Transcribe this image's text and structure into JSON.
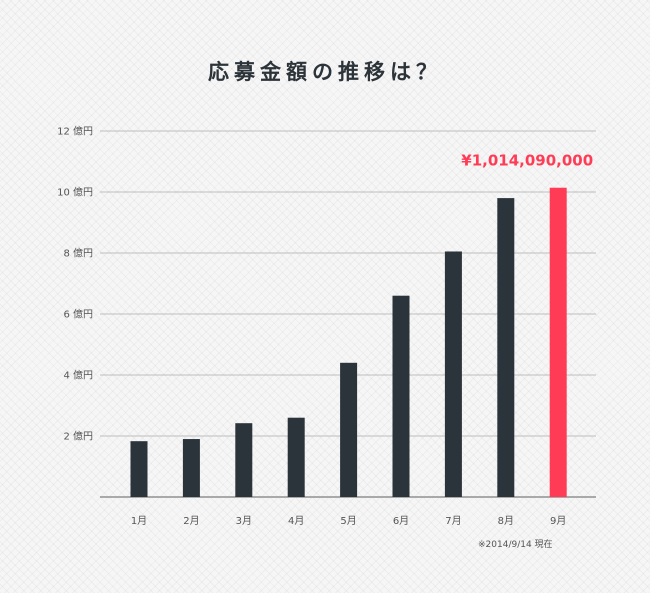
{
  "chart_data": {
    "type": "bar",
    "title": "応募金額の推移は？",
    "categories": [
      "1月",
      "2月",
      "3月",
      "4月",
      "5月",
      "6月",
      "7月",
      "8月",
      "9月"
    ],
    "values": [
      1.83,
      1.9,
      2.42,
      2.6,
      4.4,
      6.6,
      8.05,
      9.8,
      10.14
    ],
    "unit": "億円",
    "ylim": [
      0,
      12
    ],
    "yticks": [
      {
        "value": 2,
        "label": "2 億円"
      },
      {
        "value": 4,
        "label": "4 億円"
      },
      {
        "value": 6,
        "label": "6 億円"
      },
      {
        "value": 8,
        "label": "8 億円"
      },
      {
        "value": 10,
        "label": "10 億円"
      },
      {
        "value": 12,
        "label": "12 億円"
      }
    ],
    "annotation": {
      "category": "9月",
      "text": "¥1,014,090,000"
    },
    "note": "※2014/9/14 現在",
    "grid": true,
    "colors": {
      "bar": "#2b343b",
      "highlight": "#ff3b55",
      "grid": "#bdbdbd",
      "axis": "#a9a9a9"
    },
    "highlight_index": 8
  }
}
